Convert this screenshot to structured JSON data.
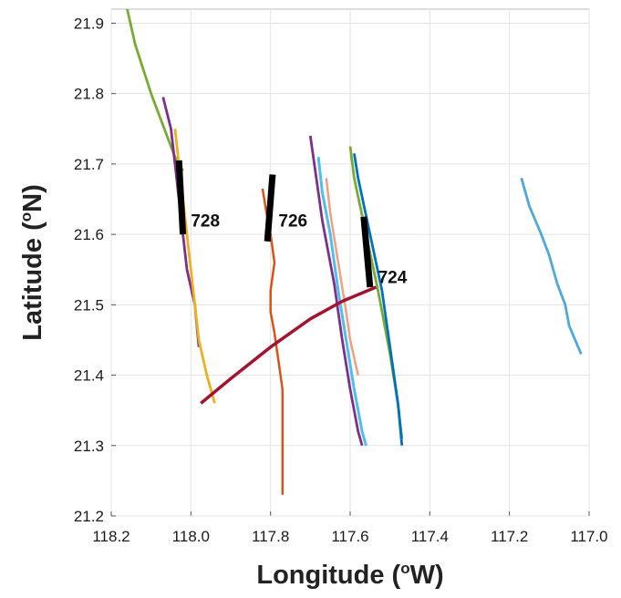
{
  "chart_data": {
    "type": "line",
    "title": "",
    "xlabel_main": "Longitude (",
    "xlabel_sup": "o",
    "xlabel_end": "W)",
    "ylabel_main": "Latitude (",
    "ylabel_sup": "o",
    "ylabel_end": "N)",
    "xlim": [
      118.2,
      117.0
    ],
    "ylim": [
      21.2,
      21.92
    ],
    "x_reversed": true,
    "grid": true,
    "xticks": [
      118.2,
      118.0,
      117.8,
      117.6,
      117.4,
      117.2,
      117.0
    ],
    "xtick_labels": [
      "118.2",
      "118.0",
      "117.8",
      "117.6",
      "117.4",
      "117.2",
      "117.0"
    ],
    "yticks": [
      21.2,
      21.3,
      21.4,
      21.5,
      21.6,
      21.7,
      21.8,
      21.9
    ],
    "ytick_labels": [
      "21.2",
      "21.3",
      "21.4",
      "21.5",
      "21.6",
      "21.7",
      "21.8",
      "21.9"
    ],
    "series": [
      {
        "color": "#77ac30",
        "width": 2.8,
        "x": [
          118.16,
          118.14,
          118.1,
          118.06,
          118.04,
          118.02
        ],
        "y": [
          21.92,
          21.87,
          21.8,
          21.74,
          21.71,
          21.69
        ]
      },
      {
        "color": "#7e2f8e",
        "width": 2.8,
        "x": [
          118.07,
          118.05,
          118.04,
          118.03,
          118.02,
          118.01,
          117.99,
          117.98
        ],
        "y": [
          21.795,
          21.75,
          21.7,
          21.65,
          21.6,
          21.55,
          21.5,
          21.44
        ]
      },
      {
        "color": "#edb120",
        "width": 2.8,
        "x": [
          118.04,
          118.03,
          118.02,
          118.01,
          118.0,
          117.99,
          117.98,
          117.96,
          117.94
        ],
        "y": [
          21.75,
          21.7,
          21.65,
          21.6,
          21.55,
          21.5,
          21.45,
          21.4,
          21.36
        ]
      },
      {
        "color": "#d95319",
        "width": 2.5,
        "x": [
          117.82,
          117.81,
          117.8,
          117.79,
          117.8,
          117.8,
          117.79,
          117.78,
          117.77,
          117.77,
          117.77,
          117.77
        ],
        "y": [
          21.665,
          21.63,
          21.6,
          21.56,
          21.52,
          21.49,
          21.46,
          21.42,
          21.38,
          21.33,
          21.28,
          21.23
        ]
      },
      {
        "color": "#7e2f8e",
        "width": 2.8,
        "x": [
          117.7,
          117.69,
          117.67,
          117.64,
          117.62,
          117.6,
          117.58,
          117.57
        ],
        "y": [
          21.74,
          21.7,
          21.62,
          21.53,
          21.45,
          21.38,
          21.32,
          21.3
        ]
      },
      {
        "color": "#4dbeee",
        "width": 3.0,
        "x": [
          117.68,
          117.67,
          117.65,
          117.63,
          117.61,
          117.59,
          117.57,
          117.56
        ],
        "y": [
          21.71,
          21.66,
          21.6,
          21.52,
          21.45,
          21.38,
          21.32,
          21.3
        ]
      },
      {
        "color": "#f0a080",
        "width": 2.5,
        "x": [
          117.66,
          117.65,
          117.63,
          117.61,
          117.6,
          117.58
        ],
        "y": [
          21.68,
          21.63,
          21.56,
          21.49,
          21.45,
          21.4
        ]
      },
      {
        "color": "#77ac30",
        "width": 2.8,
        "x": [
          117.6,
          117.59,
          117.56,
          117.53,
          117.5,
          117.48,
          117.47
        ],
        "y": [
          21.725,
          21.68,
          21.6,
          21.52,
          21.43,
          21.36,
          21.31
        ]
      },
      {
        "color": "#0072bd",
        "width": 2.8,
        "x": [
          117.59,
          117.58,
          117.55,
          117.52,
          117.5,
          117.48,
          117.47
        ],
        "y": [
          21.715,
          21.68,
          21.6,
          21.52,
          21.44,
          21.36,
          21.3
        ]
      },
      {
        "color": "#4fa8dc",
        "width": 2.8,
        "x": [
          117.17,
          117.15,
          117.12,
          117.1,
          117.08,
          117.06,
          117.05,
          117.02
        ],
        "y": [
          21.68,
          21.64,
          21.6,
          21.57,
          21.53,
          21.5,
          21.47,
          21.43
        ]
      },
      {
        "color": "#a2142f",
        "width": 3.5,
        "x": [
          117.975,
          117.9,
          117.8,
          117.7,
          117.62,
          117.535
        ],
        "y": [
          21.36,
          21.395,
          21.44,
          21.48,
          21.505,
          21.525
        ]
      },
      {
        "color": "#000000",
        "width": 7,
        "x": [
          118.03,
          118.02
        ],
        "y": [
          21.705,
          21.6
        ]
      },
      {
        "color": "#000000",
        "width": 7,
        "x": [
          117.795,
          117.808
        ],
        "y": [
          21.685,
          21.59
        ]
      },
      {
        "color": "#000000",
        "width": 7,
        "x": [
          117.566,
          117.55
        ],
        "y": [
          21.625,
          21.525
        ]
      }
    ],
    "annotations": [
      {
        "text": "728",
        "x": 118.0,
        "y": 21.62
      },
      {
        "text": "726",
        "x": 117.78,
        "y": 21.62
      },
      {
        "text": "724",
        "x": 117.53,
        "y": 21.54
      }
    ]
  }
}
